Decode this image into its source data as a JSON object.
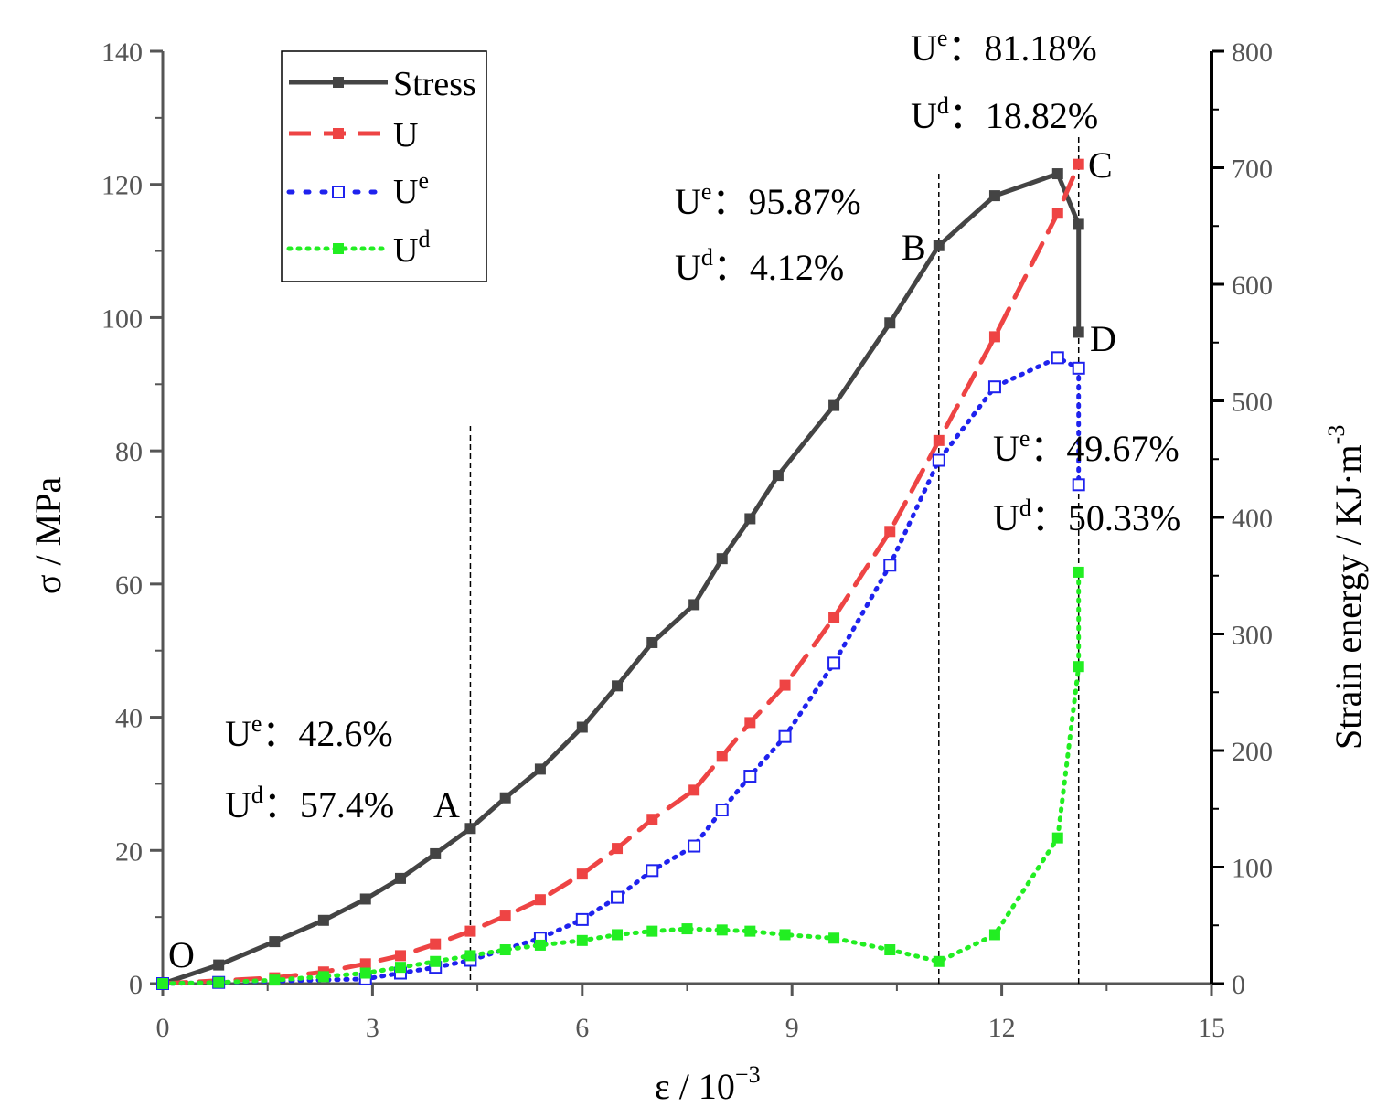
{
  "chart_data": {
    "type": "line",
    "x_axis": {
      "label": "ε / 10",
      "exponent": "−3",
      "range": [
        0,
        15
      ],
      "ticks": [
        0,
        3,
        6,
        9,
        12,
        15
      ]
    },
    "y_left": {
      "label": "σ / MPa",
      "range": [
        0,
        140
      ],
      "ticks": [
        0,
        20,
        40,
        60,
        80,
        100,
        120,
        140
      ]
    },
    "y_right": {
      "label": "Strain energy / KJ·m",
      "exponent": "-3",
      "range": [
        0,
        800
      ],
      "ticks": [
        0,
        100,
        200,
        300,
        400,
        500,
        600,
        700,
        800
      ]
    },
    "grid": false,
    "legend_position": "top-left",
    "series": [
      {
        "name": "Stress",
        "axis": "left",
        "color": "#444444",
        "style": "solid",
        "marker": "square-filled",
        "x": [
          0,
          0.8,
          1.6,
          2.3,
          2.9,
          3.4,
          3.9,
          4.4,
          4.9,
          5.4,
          6.0,
          6.5,
          7.0,
          7.6,
          8.0,
          8.4,
          8.8,
          9.6,
          10.4,
          11.1,
          11.9,
          12.8,
          13.1,
          13.1
        ],
        "y": [
          0,
          2.8,
          6.3,
          9.5,
          12.7,
          15.8,
          19.5,
          23.3,
          27.9,
          32.2,
          38.5,
          44.7,
          51.2,
          56.9,
          63.8,
          69.8,
          76.3,
          86.8,
          99.2,
          110.8,
          118.3,
          121.6,
          114.0,
          97.8
        ]
      },
      {
        "name": "U",
        "axis": "right",
        "color": "#ee4444",
        "style": "dashed",
        "marker": "square-filled",
        "x": [
          0,
          1.6,
          2.3,
          2.9,
          3.4,
          3.9,
          4.4,
          4.9,
          5.4,
          6.0,
          6.5,
          7.0,
          7.6,
          8.0,
          8.4,
          8.9,
          9.6,
          10.4,
          11.1,
          11.9,
          12.8,
          13.1
        ],
        "y": [
          0,
          5,
          10,
          17,
          24,
          34,
          45,
          58,
          72,
          94,
          116,
          141,
          166,
          195,
          224,
          256,
          314,
          388,
          466,
          555,
          661,
          703
        ]
      },
      {
        "name": "U",
        "sup": "e",
        "axis": "right",
        "color": "#1f22ee",
        "style": "dotted",
        "marker": "square-open",
        "x": [
          0,
          0.8,
          2.9,
          3.4,
          3.9,
          4.4,
          5.4,
          6.0,
          6.5,
          7.0,
          7.6,
          8.0,
          8.4,
          8.9,
          9.6,
          10.4,
          11.1,
          11.9,
          12.8,
          13.1,
          13.1
        ],
        "y": [
          0,
          1,
          4,
          9,
          14,
          20,
          39,
          55,
          74,
          97,
          118,
          149,
          178,
          212,
          275,
          359,
          449,
          512,
          537,
          528,
          428
        ]
      },
      {
        "name": "U",
        "sup": "d",
        "axis": "right",
        "color": "#22ee22",
        "style": "dotted",
        "marker": "square-filled",
        "x": [
          0,
          0.8,
          1.6,
          2.3,
          2.9,
          3.4,
          3.9,
          4.4,
          4.9,
          5.4,
          6.0,
          6.5,
          7.0,
          7.5,
          8.0,
          8.4,
          8.9,
          9.6,
          10.4,
          11.1,
          11.9,
          12.8,
          13.1,
          13.1
        ],
        "y": [
          0,
          1,
          3,
          6,
          9,
          14,
          19,
          24,
          29,
          33,
          37,
          42,
          45,
          47,
          46,
          45,
          42,
          39,
          29,
          19,
          42,
          125,
          272,
          353
        ]
      }
    ],
    "markers_positions": [
      4.4,
      11.1,
      13.1
    ],
    "point_labels": [
      "O",
      "A",
      "B",
      "C",
      "D"
    ],
    "annotations": [
      {
        "lines": [
          {
            "sym": "U",
            "sup": "e",
            "val": "：42.6%"
          },
          {
            "sym": "U",
            "sup": "d",
            "val": "：57.4%"
          }
        ]
      },
      {
        "lines": [
          {
            "sym": "U",
            "sup": "e",
            "val": "：95.87%"
          },
          {
            "sym": "U",
            "sup": "d",
            "val": "：4.12%"
          }
        ]
      },
      {
        "lines": [
          {
            "sym": "U",
            "sup": "e",
            "val": "：81.18%"
          },
          {
            "sym": "U",
            "sup": "d",
            "val": "：18.82%"
          }
        ]
      },
      {
        "lines": [
          {
            "sym": "U",
            "sup": "e",
            "val": "：49.67%"
          },
          {
            "sym": "U",
            "sup": "d",
            "val": "：50.33%"
          }
        ]
      }
    ]
  }
}
